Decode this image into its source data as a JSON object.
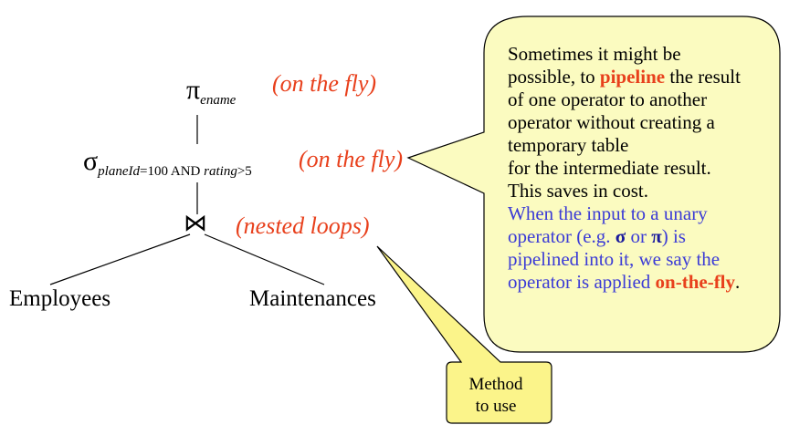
{
  "tree": {
    "projection": {
      "symbol": "π",
      "subscript": "ename",
      "annotation": "(on the fly)"
    },
    "selection": {
      "symbol": "σ",
      "subscript_part1": "planeId",
      "subscript_part2": "=100 AND ",
      "subscript_part3": "rating",
      "subscript_part4": ">5",
      "annotation": "(on the fly)"
    },
    "join": {
      "symbol": "⋈",
      "annotation": "(nested loops)"
    },
    "left_leaf": "Employees",
    "right_leaf": "Maintenances"
  },
  "callout": {
    "line1": "Sometimes it might be",
    "line2_pre": "possible, to ",
    "line2_bold": "pipeline",
    "line2_post": " the result",
    "line3": "of one operator to another",
    "line4": "operator without creating a",
    "line5": "temporary table",
    "line6": "for the intermediate result.",
    "line7": "This saves in cost.",
    "blue1": "When the input to a unary",
    "blue2_pre": "operator (e.g. ",
    "blue2_sigma": "σ",
    "blue2_mid": " or ",
    "blue2_pi": "π",
    "blue2_post": ") is",
    "blue3": "pipelined into it, we say the",
    "blue4_pre": "operator is applied ",
    "blue4_bold": "on-the-fly",
    "blue4_post": "."
  },
  "method_note": {
    "line1": "Method",
    "line2": "to use"
  },
  "colors": {
    "annotation": "#e8401c",
    "callout_fill": "#fbfbc0",
    "note_fill": "#fbf48a",
    "blue_text": "#3b3bd6"
  }
}
